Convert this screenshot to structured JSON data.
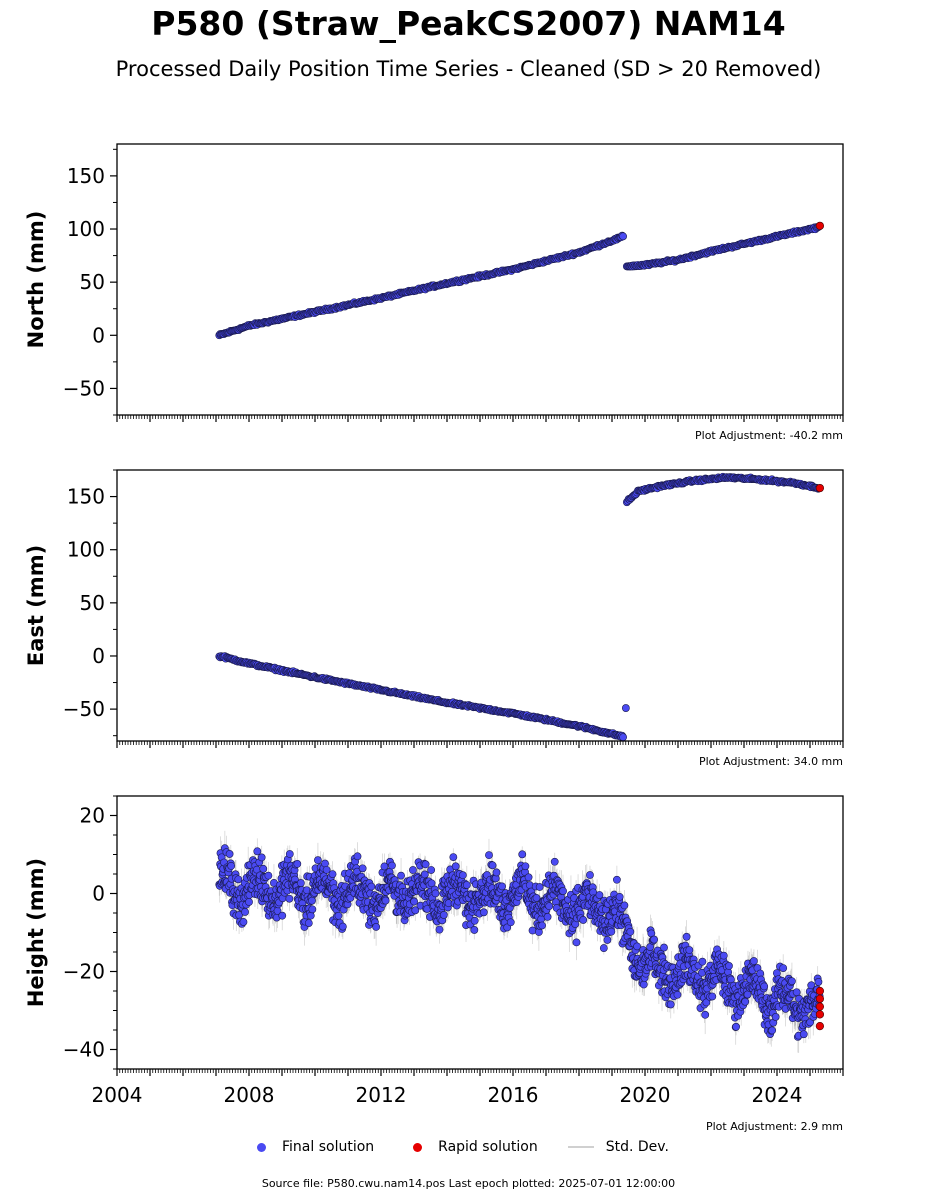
{
  "title": "P580 (Straw_PeakCS2007) NAM14",
  "subtitle": "Processed Daily Position Time Series - Cleaned (SD > 20 Removed)",
  "colors": {
    "final": "#4a4af2",
    "rapid": "#e60000",
    "stddev": "#d0d0d0",
    "edge": "#1a1a4d"
  },
  "legend": {
    "final": "Final solution",
    "rapid": "Rapid solution",
    "stddev": "Std. Dev."
  },
  "source_text": "Source file: P580.cwu.nam14.pos  Last epoch plotted: 2025-07-01 12:00:00",
  "chart_data": [
    {
      "type": "scatter",
      "ylabel": "North (mm)",
      "xlim": [
        2004,
        2026
      ],
      "ylim": [
        -75,
        180
      ],
      "yticks": [
        -50,
        0,
        50,
        100,
        150
      ],
      "adjustment": "Plot Adjustment: -40.2 mm",
      "series": [
        {
          "name": "Final solution",
          "segments": [
            {
              "x": [
                2007.1,
                2008,
                2010,
                2012,
                2014,
                2016,
                2018,
                2019.35
              ],
              "y": [
                0,
                9,
                22,
                35,
                49,
                62,
                78,
                93
              ]
            },
            {
              "x": [
                2019.45,
                2020,
                2021,
                2022,
                2023,
                2024,
                2025.3
              ],
              "y": [
                65,
                66,
                71,
                79,
                86,
                93,
                102
              ]
            }
          ]
        },
        {
          "name": "Rapid solution",
          "x": [
            2025.3
          ],
          "y": [
            103
          ]
        }
      ]
    },
    {
      "type": "scatter",
      "ylabel": "East (mm)",
      "xlim": [
        2004,
        2026
      ],
      "ylim": [
        -80,
        175
      ],
      "yticks": [
        -50,
        0,
        50,
        100,
        150
      ],
      "adjustment": "Plot Adjustment: 34.0 mm",
      "outliers": {
        "x": [
          2019.42
        ],
        "y": [
          -49
        ]
      },
      "series": [
        {
          "name": "Final solution",
          "segments": [
            {
              "x": [
                2007.1,
                2008,
                2010,
                2012,
                2014,
                2016,
                2018,
                2019.35
              ],
              "y": [
                0,
                -7,
                -20,
                -32,
                -44,
                -54,
                -66,
                -76
              ]
            },
            {
              "x": [
                2019.45,
                2019.8,
                2020.5,
                2021.5,
                2022.5,
                2023.5,
                2024.5,
                2025.3
              ],
              "y": [
                145,
                155,
                160,
                165,
                168,
                166,
                163,
                158
              ]
            }
          ]
        },
        {
          "name": "Rapid solution",
          "x": [
            2025.3
          ],
          "y": [
            158
          ]
        }
      ]
    },
    {
      "type": "scatter",
      "ylabel": "Height (mm)",
      "xlim": [
        2004,
        2026
      ],
      "ylim": [
        -45,
        25
      ],
      "yticks": [
        -40,
        -20,
        0,
        20
      ],
      "xticks": [
        2004,
        2008,
        2012,
        2016,
        2020,
        2024
      ],
      "adjustment": "Plot Adjustment: 2.9 mm",
      "series": [
        {
          "name": "Final solution",
          "trend": {
            "x": [
              2007.1,
              2012,
              2016,
              2019,
              2020,
              2022,
              2024,
              2025.3
            ],
            "y": [
              2,
              0,
              0,
              -5,
              -18,
              -22,
              -27,
              -29
            ]
          },
          "spread": 7
        },
        {
          "name": "Rapid solution",
          "x": [
            2025.3,
            2025.3,
            2025.3,
            2025.3,
            2025.3
          ],
          "y": [
            -25,
            -27,
            -29,
            -31,
            -34
          ]
        }
      ]
    }
  ]
}
